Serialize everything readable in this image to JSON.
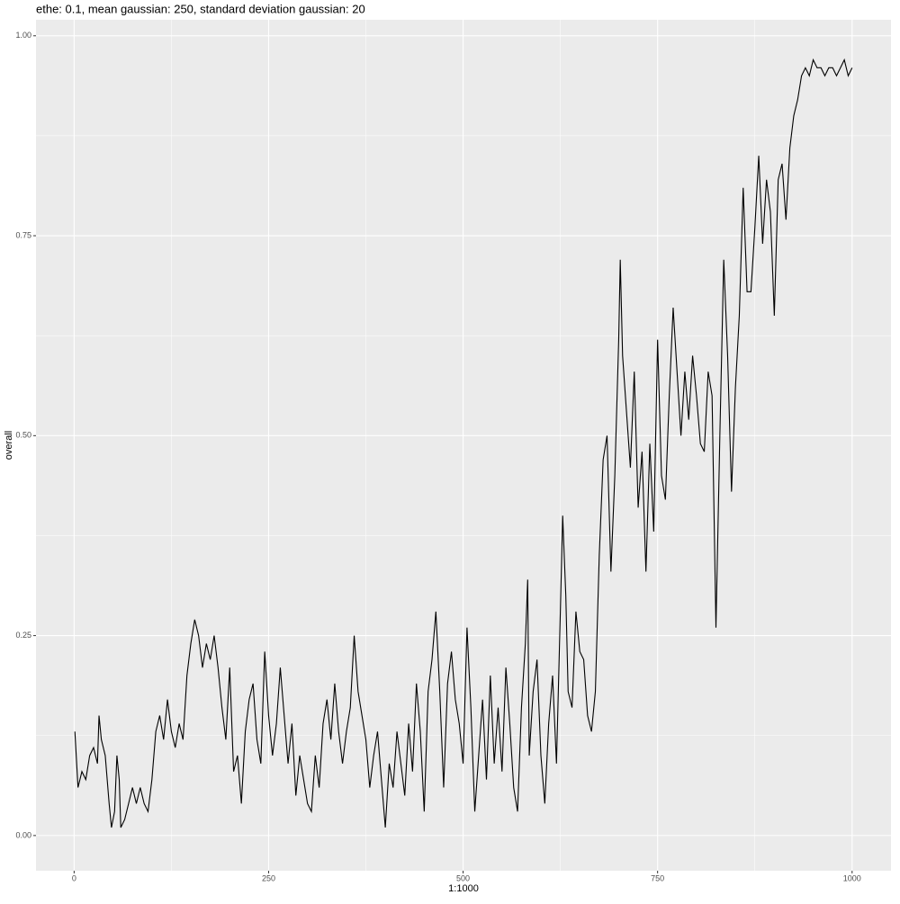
{
  "chart_data": {
    "type": "line",
    "title": "ethe: 0.1, mean gaussian: 250, standard deviation gaussian: 20",
    "x_label": "1:1000",
    "y_label": "overall",
    "x": [
      1,
      5,
      10,
      15,
      20,
      25,
      30,
      32,
      35,
      40,
      45,
      48,
      52,
      55,
      58,
      60,
      65,
      70,
      75,
      80,
      85,
      90,
      95,
      100,
      105,
      110,
      115,
      120,
      125,
      130,
      135,
      140,
      145,
      150,
      155,
      160,
      165,
      170,
      175,
      180,
      185,
      190,
      195,
      200,
      205,
      210,
      215,
      220,
      225,
      230,
      235,
      240,
      245,
      250,
      255,
      260,
      265,
      270,
      275,
      280,
      285,
      290,
      295,
      300,
      305,
      310,
      315,
      320,
      325,
      330,
      335,
      340,
      345,
      350,
      355,
      360,
      365,
      370,
      375,
      380,
      385,
      390,
      395,
      400,
      405,
      410,
      415,
      420,
      425,
      430,
      435,
      440,
      445,
      450,
      455,
      460,
      465,
      470,
      475,
      480,
      485,
      490,
      495,
      500,
      505,
      510,
      515,
      520,
      525,
      530,
      535,
      540,
      545,
      550,
      555,
      560,
      565,
      570,
      575,
      580,
      583,
      585,
      590,
      595,
      600,
      605,
      610,
      615,
      620,
      625,
      628,
      632,
      635,
      640,
      645,
      650,
      655,
      660,
      665,
      670,
      675,
      680,
      685,
      690,
      695,
      700,
      702,
      705,
      710,
      715,
      720,
      725,
      730,
      735,
      740,
      745,
      750,
      755,
      760,
      765,
      770,
      775,
      780,
      785,
      790,
      795,
      800,
      805,
      810,
      815,
      820,
      825,
      830,
      835,
      840,
      845,
      850,
      855,
      860,
      865,
      870,
      875,
      880,
      885,
      890,
      895,
      900,
      905,
      910,
      915,
      920,
      925,
      930,
      935,
      940,
      945,
      950,
      955,
      960,
      965,
      970,
      975,
      980,
      985,
      990,
      995,
      1000
    ],
    "series": [
      {
        "name": "overall",
        "color": "#000000",
        "values": [
          0.13,
          0.06,
          0.08,
          0.07,
          0.1,
          0.11,
          0.09,
          0.15,
          0.12,
          0.1,
          0.04,
          0.01,
          0.03,
          0.1,
          0.07,
          0.01,
          0.02,
          0.04,
          0.06,
          0.04,
          0.06,
          0.04,
          0.03,
          0.07,
          0.13,
          0.15,
          0.12,
          0.17,
          0.13,
          0.11,
          0.14,
          0.12,
          0.2,
          0.24,
          0.27,
          0.25,
          0.21,
          0.24,
          0.22,
          0.25,
          0.21,
          0.16,
          0.12,
          0.21,
          0.08,
          0.1,
          0.04,
          0.13,
          0.17,
          0.19,
          0.12,
          0.09,
          0.23,
          0.15,
          0.1,
          0.14,
          0.21,
          0.15,
          0.09,
          0.14,
          0.05,
          0.1,
          0.07,
          0.04,
          0.03,
          0.1,
          0.06,
          0.14,
          0.17,
          0.12,
          0.19,
          0.13,
          0.09,
          0.13,
          0.16,
          0.25,
          0.18,
          0.15,
          0.12,
          0.06,
          0.1,
          0.13,
          0.07,
          0.01,
          0.09,
          0.06,
          0.13,
          0.09,
          0.05,
          0.14,
          0.08,
          0.19,
          0.13,
          0.03,
          0.18,
          0.22,
          0.28,
          0.18,
          0.06,
          0.19,
          0.23,
          0.17,
          0.14,
          0.09,
          0.26,
          0.16,
          0.03,
          0.1,
          0.17,
          0.07,
          0.2,
          0.09,
          0.16,
          0.08,
          0.21,
          0.14,
          0.06,
          0.03,
          0.16,
          0.24,
          0.32,
          0.1,
          0.18,
          0.22,
          0.1,
          0.04,
          0.14,
          0.2,
          0.09,
          0.28,
          0.4,
          0.3,
          0.18,
          0.16,
          0.28,
          0.23,
          0.22,
          0.15,
          0.13,
          0.18,
          0.35,
          0.47,
          0.5,
          0.33,
          0.45,
          0.62,
          0.72,
          0.6,
          0.53,
          0.46,
          0.58,
          0.41,
          0.48,
          0.33,
          0.49,
          0.38,
          0.62,
          0.45,
          0.42,
          0.55,
          0.66,
          0.58,
          0.5,
          0.58,
          0.52,
          0.6,
          0.55,
          0.49,
          0.48,
          0.58,
          0.55,
          0.26,
          0.5,
          0.72,
          0.6,
          0.43,
          0.56,
          0.65,
          0.81,
          0.68,
          0.68,
          0.76,
          0.85,
          0.74,
          0.82,
          0.78,
          0.65,
          0.82,
          0.84,
          0.77,
          0.86,
          0.9,
          0.92,
          0.95,
          0.96,
          0.95,
          0.97,
          0.96,
          0.96,
          0.95,
          0.96,
          0.96,
          0.95,
          0.96,
          0.97,
          0.95,
          0.96
        ]
      }
    ],
    "xlim": [
      -49,
      1050
    ],
    "xticks": [
      0,
      250,
      500,
      750,
      1000
    ],
    "ylim": [
      -0.044,
      1.02
    ],
    "yticks": [
      {
        "value": 0,
        "label": "0.00"
      },
      {
        "value": 0.25,
        "label": "0.25"
      },
      {
        "value": 0.5,
        "label": "0.50"
      },
      {
        "value": 0.75,
        "label": "0.75"
      },
      {
        "value": 1,
        "label": "1.00"
      }
    ],
    "grid": true
  }
}
